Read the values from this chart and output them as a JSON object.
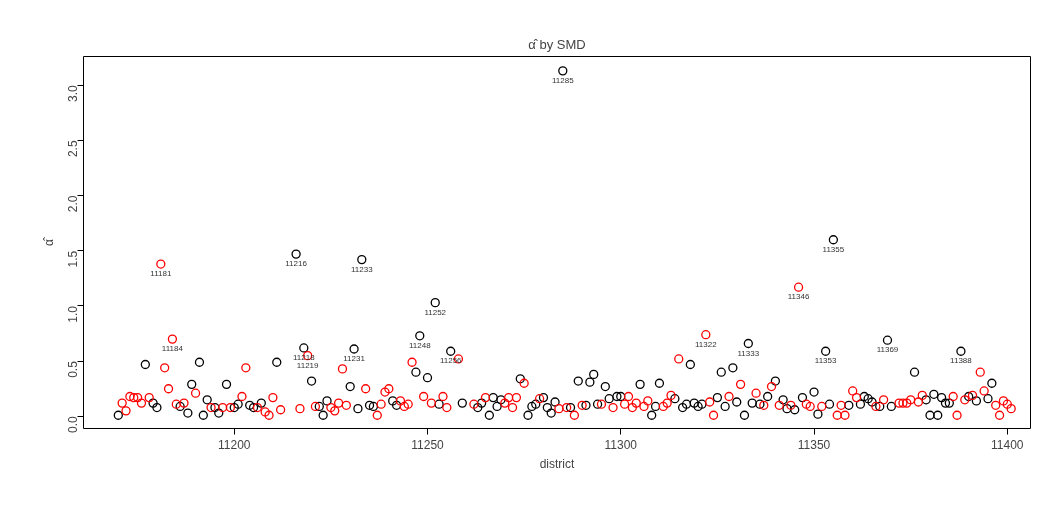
{
  "chart_data": {
    "type": "scatter",
    "title": "α̂ by SMD",
    "xlabel": "district",
    "ylabel": "α̂",
    "marker": "circle",
    "grid": false,
    "xlim": [
      11161,
      11406
    ],
    "ylim": [
      -0.11,
      3.26
    ],
    "xticks": [
      11200,
      11250,
      11300,
      11350,
      11400
    ],
    "yticks": [
      {
        "value": 0,
        "label": "0.0"
      },
      {
        "value": 0.5,
        "label": "0.5"
      },
      {
        "value": 1,
        "label": "1.0"
      },
      {
        "value": 1.5,
        "label": "1.5"
      },
      {
        "value": 2,
        "label": "2.0"
      },
      {
        "value": 2.5,
        "label": "2.5"
      },
      {
        "value": 3,
        "label": "3.0"
      }
    ],
    "series": [
      {
        "color": "#000000",
        "x": [
          11170,
          11177,
          11179,
          11180,
          11186,
          11188,
          11189,
          11191,
          11192,
          11193,
          11195,
          11196,
          11198,
          11200,
          11201,
          11204,
          11205,
          11207,
          11211,
          11216,
          11218,
          11220,
          11222,
          11223,
          11224,
          11230,
          11231,
          11232,
          11233,
          11235,
          11236,
          11241,
          11242,
          11247,
          11248,
          11250,
          11252,
          11253,
          11256,
          11259,
          11263,
          11264,
          11266,
          11267,
          11268,
          11269,
          11274,
          11276,
          11277,
          11278,
          11280,
          11281,
          11282,
          11283,
          11285,
          11287,
          11289,
          11291,
          11292,
          11293,
          11294,
          11296,
          11297,
          11299,
          11300,
          11305,
          11308,
          11309,
          11310,
          11314,
          11316,
          11317,
          11318,
          11319,
          11320,
          11321,
          11325,
          11326,
          11327,
          11329,
          11330,
          11332,
          11333,
          11334,
          11336,
          11338,
          11340,
          11342,
          11343,
          11345,
          11347,
          11350,
          11351,
          11353,
          11354,
          11355,
          11359,
          11362,
          11363,
          11364,
          11365,
          11367,
          11369,
          11370,
          11376,
          11379,
          11380,
          11381,
          11382,
          11383,
          11384,
          11385,
          11388,
          11390,
          11392,
          11395,
          11396
        ],
        "values": [
          0.01,
          0.47,
          0.12,
          0.08,
          0.09,
          0.03,
          0.29,
          0.49,
          0.01,
          0.15,
          0.08,
          0.03,
          0.29,
          0.08,
          0.11,
          0.1,
          0.08,
          0.12,
          0.49,
          1.47,
          0.62,
          0.32,
          0.09,
          0.01,
          0.14,
          0.27,
          0.61,
          0.07,
          1.42,
          0.1,
          0.09,
          0.14,
          0.1,
          0.4,
          0.73,
          0.35,
          1.03,
          0.11,
          0.59,
          0.12,
          0.08,
          0.12,
          0.01,
          0.17,
          0.09,
          0.15,
          0.34,
          0.01,
          0.09,
          0.11,
          0.17,
          0.08,
          0.03,
          0.13,
          3.13,
          0.08,
          0.32,
          0.1,
          0.31,
          0.38,
          0.11,
          0.27,
          0.16,
          0.18,
          0.18,
          0.29,
          0.01,
          0.09,
          0.3,
          0.16,
          0.08,
          0.11,
          0.47,
          0.12,
          0.09,
          0.11,
          0.17,
          0.4,
          0.09,
          0.44,
          0.13,
          0.01,
          0.66,
          0.12,
          0.11,
          0.18,
          0.32,
          0.15,
          0.07,
          0.06,
          0.17,
          0.22,
          0.02,
          0.59,
          0.11,
          1.6,
          0.1,
          0.11,
          0.18,
          0.16,
          0.13,
          0.09,
          0.69,
          0.09,
          0.4,
          0.15,
          0.01,
          0.2,
          0.01,
          0.17,
          0.12,
          0.12,
          0.59,
          0.18,
          0.14,
          0.16,
          0.3
        ]
      },
      {
        "color": "#ff0000",
        "x": [
          11171,
          11172,
          11173,
          11174,
          11175,
          11176,
          11178,
          11181,
          11182,
          11183,
          11184,
          11185,
          11187,
          11190,
          11194,
          11197,
          11199,
          11202,
          11203,
          11206,
          11208,
          11209,
          11210,
          11212,
          11217,
          11219,
          11221,
          11225,
          11226,
          11227,
          11228,
          11229,
          11234,
          11237,
          11238,
          11239,
          11240,
          11243,
          11244,
          11245,
          11246,
          11249,
          11251,
          11254,
          11255,
          11258,
          11262,
          11265,
          11270,
          11271,
          11272,
          11273,
          11275,
          11279,
          11284,
          11286,
          11288,
          11290,
          11295,
          11298,
          11301,
          11302,
          11303,
          11304,
          11306,
          11307,
          11311,
          11312,
          11313,
          11315,
          11322,
          11323,
          11324,
          11328,
          11331,
          11335,
          11337,
          11339,
          11341,
          11344,
          11346,
          11348,
          11349,
          11352,
          11356,
          11357,
          11358,
          11360,
          11361,
          11366,
          11368,
          11372,
          11373,
          11374,
          11375,
          11377,
          11378,
          11386,
          11387,
          11389,
          11391,
          11393,
          11394,
          11397,
          11398,
          11399,
          11400,
          11401
        ],
        "values": [
          0.12,
          0.05,
          0.18,
          0.17,
          0.17,
          0.12,
          0.17,
          1.38,
          0.44,
          0.25,
          0.7,
          0.11,
          0.12,
          0.21,
          0.08,
          0.08,
          0.08,
          0.18,
          0.44,
          0.08,
          0.04,
          0.01,
          0.17,
          0.06,
          0.07,
          0.55,
          0.09,
          0.08,
          0.05,
          0.12,
          0.43,
          0.1,
          0.25,
          0.01,
          0.11,
          0.22,
          0.25,
          0.14,
          0.09,
          0.11,
          0.49,
          0.18,
          0.12,
          0.18,
          0.08,
          0.52,
          0.11,
          0.17,
          0.12,
          0.17,
          0.08,
          0.17,
          0.3,
          0.16,
          0.07,
          0.08,
          0.01,
          0.1,
          0.11,
          0.08,
          0.11,
          0.18,
          0.08,
          0.12,
          0.09,
          0.14,
          0.09,
          0.12,
          0.19,
          0.52,
          0.74,
          0.13,
          0.01,
          0.18,
          0.29,
          0.21,
          0.1,
          0.27,
          0.1,
          0.1,
          1.17,
          0.11,
          0.09,
          0.09,
          0.01,
          0.1,
          0.01,
          0.23,
          0.17,
          0.09,
          0.15,
          0.12,
          0.12,
          0.12,
          0.15,
          0.13,
          0.19,
          0.18,
          0.01,
          0.15,
          0.19,
          0.4,
          0.23,
          0.1,
          0.01,
          0.14,
          0.11,
          0.07
        ]
      }
    ],
    "annotations": [
      {
        "text": "11181",
        "x": 11181,
        "y": 1.38
      },
      {
        "text": "11184",
        "x": 11184,
        "y": 0.7
      },
      {
        "text": "11216",
        "x": 11216,
        "y": 1.47
      },
      {
        "text": "11218",
        "x": 11218,
        "y": 0.62
      },
      {
        "text": "11219",
        "x": 11219,
        "y": 0.55
      },
      {
        "text": "11231",
        "x": 11231,
        "y": 0.61
      },
      {
        "text": "11233",
        "x": 11233,
        "y": 1.42
      },
      {
        "text": "11248",
        "x": 11248,
        "y": 0.73
      },
      {
        "text": "11252",
        "x": 11252,
        "y": 1.03
      },
      {
        "text": "11256",
        "x": 11256,
        "y": 0.59
      },
      {
        "text": "11285",
        "x": 11285,
        "y": 3.13
      },
      {
        "text": "11322",
        "x": 11322,
        "y": 0.74
      },
      {
        "text": "11333",
        "x": 11333,
        "y": 0.66
      },
      {
        "text": "11346",
        "x": 11346,
        "y": 1.17
      },
      {
        "text": "11353",
        "x": 11353,
        "y": 0.59
      },
      {
        "text": "11355",
        "x": 11355,
        "y": 1.6
      },
      {
        "text": "11369",
        "x": 11369,
        "y": 0.69
      },
      {
        "text": "11388",
        "x": 11388,
        "y": 0.59
      }
    ]
  }
}
